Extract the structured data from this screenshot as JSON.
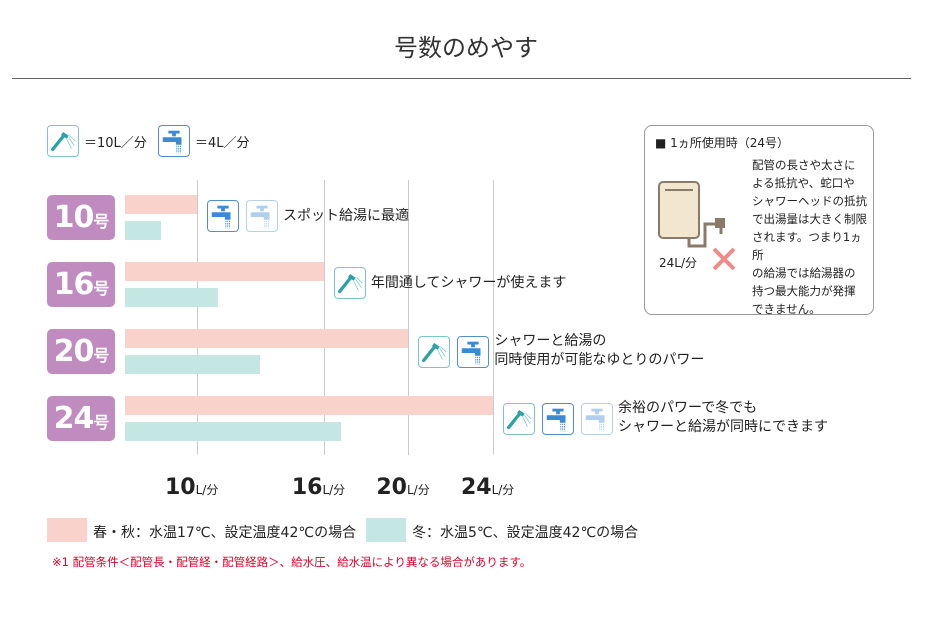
{
  "title": "号数のめやす",
  "legend_icons": {
    "shower_label": "＝10L／分",
    "faucet_label": "＝4L／分"
  },
  "colors": {
    "spring_autumn": "#f9d3cb",
    "winter": "#c5e7e4",
    "badge": "#c08cbf",
    "note": "#e0002a"
  },
  "chart_data": {
    "type": "bar",
    "orientation": "horizontal",
    "categories": [
      {
        "num": "10",
        "unit": "号"
      },
      {
        "num": "16",
        "unit": "号"
      },
      {
        "num": "20",
        "unit": "号"
      },
      {
        "num": "24",
        "unit": "号"
      }
    ],
    "series": [
      {
        "name": "春・秋：水温17℃、設定温度42℃の場合",
        "values": [
          10,
          16,
          20,
          24
        ],
        "color": "#f9d3cb"
      },
      {
        "name": "冬：水温5℃、設定温度42℃の場合",
        "values": [
          8.3,
          11,
          13,
          16.8
        ],
        "color": "#c5e7e4"
      }
    ],
    "ticks": [
      {
        "value": 10,
        "label": "10",
        "unit": "L/分"
      },
      {
        "value": 16,
        "label": "16",
        "unit": "L/分"
      },
      {
        "value": 20,
        "label": "20",
        "unit": "L/分"
      },
      {
        "value": 24,
        "label": "24",
        "unit": "L/分"
      }
    ],
    "grid": true,
    "legend_position": "bottom"
  },
  "rows": [
    {
      "icons": [
        "faucet",
        "faucet-faded"
      ],
      "text": [
        "スポット給湯に最適"
      ]
    },
    {
      "icons": [
        "shower"
      ],
      "text": [
        "年間通してシャワーが使えます"
      ]
    },
    {
      "icons": [
        "shower",
        "faucet"
      ],
      "text": [
        "シャワーと給湯の",
        "同時使用が可能なゆとりのパワー"
      ]
    },
    {
      "icons": [
        "shower",
        "faucet",
        "faucet-faded"
      ],
      "text": [
        "余裕のパワーで冬でも",
        "シャワーと給湯が同時にできます"
      ]
    }
  ],
  "info_box": {
    "heading": "■ 1ヵ所使用時（24号）",
    "flow": "24L/分",
    "lines": [
      "配管の長さや太さに",
      "よる抵抗や、蛇口や",
      "シャワーヘッドの抵抗",
      "で出湯量は大きく制限",
      "されます。つまり1ヵ所",
      "の給湯では給湯器の",
      "持つ最大能力が発揮",
      "できません。"
    ]
  },
  "note": "※1 配管条件＜配管長・配管経・配管経路＞、給水圧、給水温により異なる場合があります。"
}
